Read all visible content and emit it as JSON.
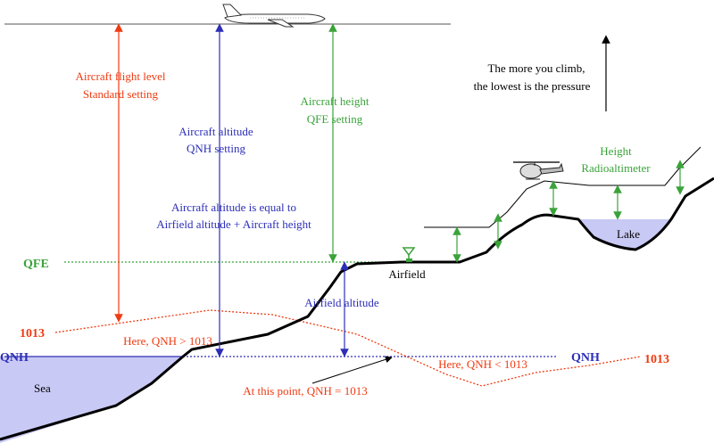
{
  "labels": {
    "flight_level_1": "Aircraft flight level",
    "flight_level_2": "Standard setting",
    "altitude_1": "Aircraft altitude",
    "altitude_2": "QNH setting",
    "height_1": "Aircraft height",
    "height_2": "QFE setting",
    "equal_1": "Aircraft altitude is equal to",
    "equal_2": "Airfield altitude + Aircraft height",
    "climb_1": "The more you climb,",
    "climb_2": "the lowest is the pressure",
    "radio_1": "Height",
    "radio_2": "Radioaltimeter",
    "lake": "Lake",
    "airfield": "Airfield",
    "airfield_altitude": "Airfield altitude",
    "qfe": "QFE",
    "qnh_left": "QNH",
    "qnh_right": "QNH",
    "std_left": "1013",
    "std_right": "1013",
    "here_gt": "Here, QNH > 1013",
    "here_lt": "Here, QNH < 1013",
    "point_eq": "At this point, QNH = 1013",
    "sea": "Sea"
  },
  "colors": {
    "flight_level": "#ef3b12",
    "altitude": "#2d2fb8",
    "height": "#3aa33a",
    "sea_fill": "#c9c9f5",
    "ground": "#000000"
  },
  "icons": {
    "aircraft": "airplane-icon",
    "helicopter": "helicopter-icon",
    "antenna": "antenna-icon"
  }
}
